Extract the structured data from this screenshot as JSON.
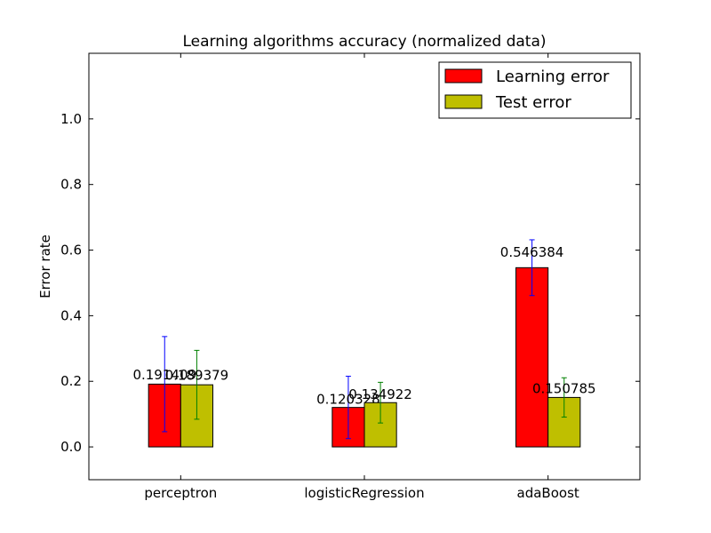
{
  "chart_data": {
    "type": "bar",
    "title": "Learning algorithms accuracy (normalized data)",
    "xlabel": "",
    "ylabel": "Error rate",
    "ylim": [
      -0.1,
      1.2
    ],
    "yticks": [
      0.0,
      0.2,
      0.4,
      0.6,
      0.8,
      1.0
    ],
    "ytick_labels": [
      "0.0",
      "0.2",
      "0.4",
      "0.6",
      "0.8",
      "1.0"
    ],
    "categories": [
      "perceptron",
      "logisticRegression",
      "adaBoost"
    ],
    "series": [
      {
        "name": "Learning error",
        "color": "#ff0000",
        "error_color": "#0000ff",
        "values": [
          0.191409,
          0.120328,
          0.546384
        ],
        "value_labels": [
          "0.191409",
          "0.120328",
          "0.546384"
        ],
        "errors": [
          0.145,
          0.095,
          0.085
        ]
      },
      {
        "name": "Test error",
        "color": "#bfbf00",
        "error_color": "#008000",
        "values": [
          0.189379,
          0.134922,
          0.150785
        ],
        "value_labels": [
          "0.189379",
          "0.134922",
          "0.150785"
        ],
        "errors": [
          0.105,
          0.062,
          0.06
        ]
      }
    ],
    "legend": "top-right",
    "grid": false
  }
}
